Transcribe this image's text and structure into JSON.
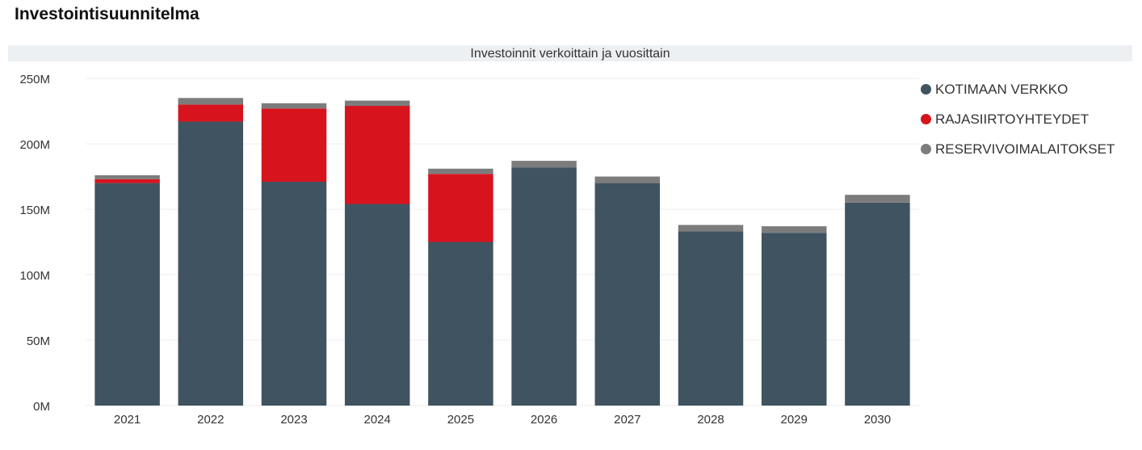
{
  "page": {
    "title": "Investointisuunnitelma"
  },
  "chart_data": {
    "type": "bar",
    "stacked": true,
    "title": "Investoinnit verkoittain ja vuosittain",
    "xlabel": "",
    "ylabel": "",
    "ylim": [
      0,
      250
    ],
    "yticks": [
      0,
      50,
      100,
      150,
      200,
      250
    ],
    "ytick_labels": [
      "0M",
      "50M",
      "100M",
      "150M",
      "200M",
      "250M"
    ],
    "categories": [
      "2021",
      "2022",
      "2023",
      "2024",
      "2025",
      "2026",
      "2027",
      "2028",
      "2029",
      "2030"
    ],
    "grid": true,
    "legend_position": "right",
    "series": [
      {
        "name": "KOTIMAAN VERKKO",
        "color": "#3f5361",
        "values": [
          170,
          217,
          171,
          154,
          125,
          182,
          170,
          133,
          132,
          155
        ]
      },
      {
        "name": "RAJASIIRTOYHTEYDET",
        "color": "#d7141e",
        "values": [
          3,
          13,
          56,
          75,
          52,
          0,
          0,
          0,
          0,
          0
        ]
      },
      {
        "name": "RESERVIVOIMALAITOKSET",
        "color": "#7c7c7c",
        "values": [
          3,
          5,
          4,
          4,
          4,
          5,
          5,
          5,
          5,
          6
        ]
      }
    ]
  }
}
